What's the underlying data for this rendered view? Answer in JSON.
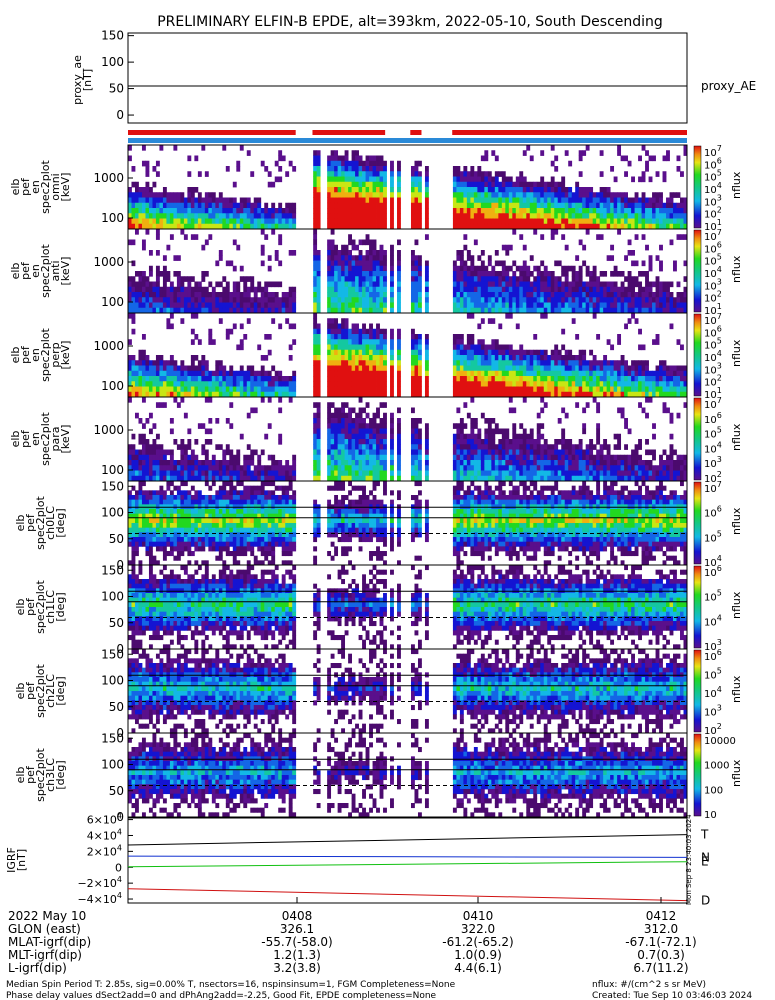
{
  "chart_data": {
    "type": "heatmap",
    "title": "PRELIMINARY ELFIN-B EPDE, alt=393km, 2022-05-10, South Descending",
    "time_ticks": [
      "0408",
      "0410",
      "0412"
    ],
    "time_axis_row_label": "2022 May 10",
    "proxy_ae": {
      "ylabel_lines": [
        "proxy_ae",
        "[nT]"
      ],
      "yticks": [
        "150",
        "100",
        "50",
        "0"
      ],
      "ylim": [
        -15,
        155
      ],
      "value": 55,
      "legend": "proxy_AE"
    },
    "state_bars": {
      "top_color": "#e01010",
      "top_segments": [
        [
          0.0,
          0.3
        ],
        [
          0.33,
          0.46
        ],
        [
          0.505,
          0.525
        ],
        [
          0.58,
          1.0
        ]
      ],
      "bottom_color": "#2a8ad8"
    },
    "panels": [
      {
        "ylabel_lines": [
          "elb",
          "pef",
          "en",
          "spec2plot",
          "omni",
          "[keV]"
        ],
        "yticks": [
          "1000",
          "100"
        ],
        "cb_ticks": [
          "10^7",
          "10^6",
          "10^5",
          "10^4",
          "10^3",
          "10^2",
          "10^1"
        ],
        "cb_label": "nflux"
      },
      {
        "ylabel_lines": [
          "elb",
          "pef",
          "en",
          "spec2plot",
          "anti",
          "[keV]"
        ],
        "yticks": [
          "1000",
          "100"
        ],
        "cb_ticks": [
          "10^7",
          "10^6",
          "10^5",
          "10^4",
          "10^3",
          "10^2",
          "10^1"
        ],
        "cb_label": "nflux"
      },
      {
        "ylabel_lines": [
          "elb",
          "pef",
          "en",
          "spec2plot",
          "perp",
          "[keV]"
        ],
        "yticks": [
          "1000",
          "100"
        ],
        "cb_ticks": [
          "10^7",
          "10^6",
          "10^5",
          "10^4",
          "10^3",
          "10^2",
          "10^1"
        ],
        "cb_label": "nflux"
      },
      {
        "ylabel_lines": [
          "elb",
          "pef",
          "en",
          "spec2plot",
          "para",
          "[keV]"
        ],
        "yticks": [
          "1000",
          "100"
        ],
        "cb_ticks": [
          "10^7",
          "10^6",
          "10^5",
          "10^4",
          "10^3",
          "10^2"
        ],
        "cb_label": "nflux"
      },
      {
        "ylabel_lines": [
          "elb",
          "pef",
          "spec2plot",
          "ch0LC",
          "[deg]"
        ],
        "yticks": [
          "150",
          "100",
          "50",
          "0"
        ],
        "cb_ticks": [
          "10^7",
          "10^6",
          "10^5",
          "10^4"
        ],
        "cb_label": "nflux"
      },
      {
        "ylabel_lines": [
          "elb",
          "pef",
          "spec2plot",
          "ch1LC",
          "[deg]"
        ],
        "yticks": [
          "150",
          "100",
          "50",
          "0"
        ],
        "cb_ticks": [
          "10^6",
          "10^5",
          "10^4",
          "10^3"
        ],
        "cb_label": "nflux"
      },
      {
        "ylabel_lines": [
          "elb",
          "pef",
          "spec2plot",
          "ch2LC",
          "[deg]"
        ],
        "yticks": [
          "150",
          "100",
          "50",
          "0"
        ],
        "cb_ticks": [
          "10^6",
          "10^5",
          "10^4",
          "10^3",
          "10^2"
        ],
        "cb_label": "nflux"
      },
      {
        "ylabel_lines": [
          "elb",
          "pef",
          "spec2plot",
          "ch3LC",
          "[deg]"
        ],
        "yticks": [
          "150",
          "100",
          "50",
          "0"
        ],
        "cb_ticks": [
          "10000",
          "1000",
          "100",
          "10"
        ],
        "cb_label": "nflux"
      }
    ],
    "igrf": {
      "ylabel_lines": [
        "IGRF",
        "[nT]"
      ],
      "yticks": [
        "6×10^4",
        "4×10^4",
        "2×10^4",
        "0",
        "−2×10^4",
        "−4×10^4"
      ],
      "ylim": [
        -45000,
        62000
      ],
      "series": [
        {
          "name": "T",
          "color": "#000000",
          "values": [
            28000,
            41000
          ]
        },
        {
          "name": "N",
          "color": "#1030d0",
          "values": [
            14000,
            12500
          ]
        },
        {
          "name": "E",
          "color": "#10c010",
          "values": [
            600,
            7000
          ]
        },
        {
          "name": "D",
          "color": "#d01010",
          "values": [
            -27000,
            -42000
          ]
        }
      ],
      "side_note": "Mon Sep 8 23:40:03 2024"
    },
    "ephemeris": [
      {
        "label": "GLON (east)",
        "values": [
          "326.1",
          "322.0",
          "312.0"
        ]
      },
      {
        "label": "MLAT-igrf(dip)",
        "values": [
          "-55.7(-58.0)",
          "-61.2(-65.2)",
          "-67.1(-72.1)"
        ]
      },
      {
        "label": "MLT-igrf(dip)",
        "values": [
          "1.2(1.3)",
          "1.0(0.9)",
          "0.7(0.3)"
        ]
      },
      {
        "label": "L-igrf(dip)",
        "values": [
          "3.2(3.8)",
          "4.4(6.1)",
          "6.7(11.2)"
        ]
      }
    ]
  },
  "footer": {
    "line1": "Median Spin Period T: 2.85s, sig=0.00% T, nsectors=16, nspinsinsum=1, FGM Completeness=None",
    "line2": "Phase delay values dSect2add=0 and dPhAng2add=-2.25, Good Fit, EPDE completeness=None",
    "right1": "nflux: #/(cm^2 s sr MeV)",
    "right2": "Created: Tue Sep 10 03:46:03 2024"
  }
}
